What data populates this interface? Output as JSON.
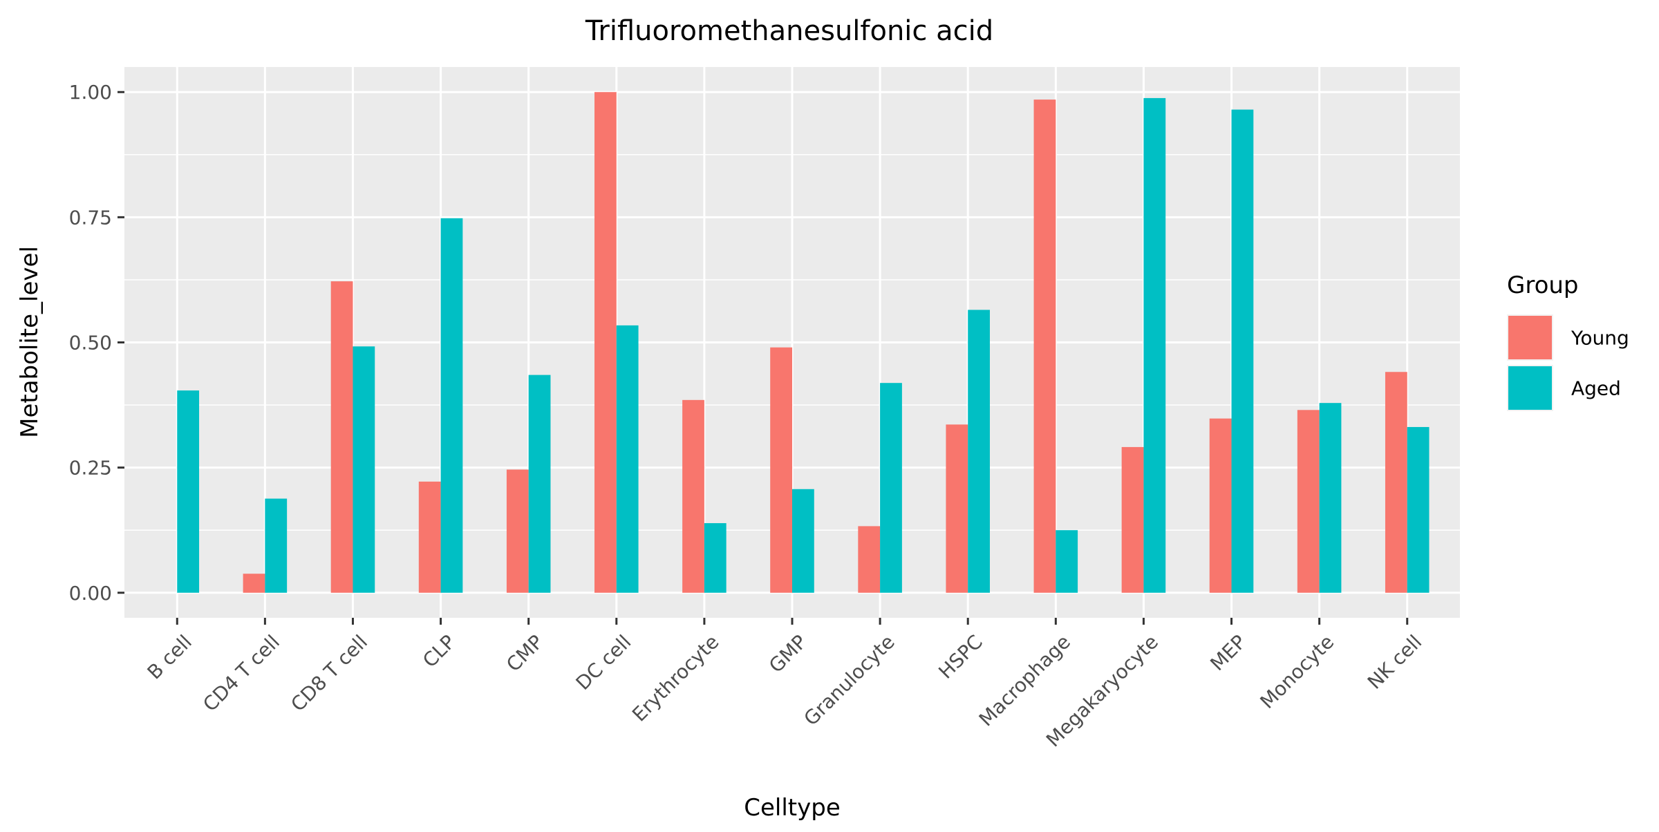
{
  "chart_data": {
    "type": "bar",
    "title": "Trifluoromethanesulfonic acid",
    "xlabel": "Celltype",
    "ylabel": "Metabolite_level",
    "categories": [
      "B cell",
      "CD4 T cell",
      "CD8 T cell",
      "CLP",
      "CMP",
      "DC cell",
      "Erythrocyte",
      "GMP",
      "Granulocyte",
      "HSPC",
      "Macrophage",
      "Megakaryocyte",
      "MEP",
      "Monocyte",
      "NK cell"
    ],
    "series": [
      {
        "name": "Young",
        "color": "#F8766D",
        "values": [
          0.0,
          0.038,
          0.622,
          0.222,
          0.246,
          1.0,
          0.385,
          0.49,
          0.133,
          0.336,
          0.985,
          0.291,
          0.348,
          0.365,
          0.441
        ]
      },
      {
        "name": "Aged",
        "color": "#00BFC4",
        "values": [
          0.404,
          0.188,
          0.492,
          0.748,
          0.435,
          0.534,
          0.139,
          0.207,
          0.419,
          0.565,
          0.125,
          0.988,
          0.965,
          0.379,
          0.331
        ]
      }
    ],
    "ylim": [
      -0.05,
      1.05
    ],
    "yticks": [
      0.0,
      0.25,
      0.5,
      0.75,
      1.0
    ],
    "ytick_labels": [
      "0.00",
      "0.25",
      "0.50",
      "0.75",
      "1.00"
    ],
    "legend": {
      "title": "Group",
      "position": "right"
    },
    "grid": true,
    "colors": {
      "panel_bg": "#EBEBEB",
      "grid": "#FFFFFF",
      "tick_text": "#4D4D4D",
      "tick_mark": "#333333"
    }
  }
}
